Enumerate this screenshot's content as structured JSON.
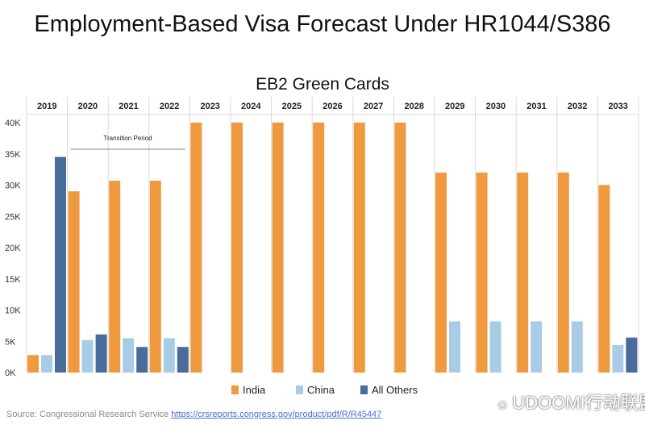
{
  "page_title": "Employment-Based Visa Forecast Under HR1044/S386",
  "source": {
    "label": "Source: Congressional Research Service",
    "url_text": "https://crsreports.congress.gov/product/pdf/R/R45447"
  },
  "watermark": "UDOOMI行动联盟",
  "colors": {
    "india": "#ef9a3e",
    "china": "#a9cce6",
    "others": "#4a6c9b",
    "grid": "#d9d9d9"
  },
  "chart_data": {
    "type": "bar",
    "title": "EB2 Green Cards",
    "xlabel": "",
    "ylabel": "",
    "categories": [
      "2019",
      "2020",
      "2021",
      "2022",
      "2023",
      "2024",
      "2025",
      "2026",
      "2027",
      "2028",
      "2029",
      "2030",
      "2031",
      "2032",
      "2033"
    ],
    "series": [
      {
        "name": "India",
        "values": [
          2800,
          29000,
          30700,
          30700,
          40000,
          40000,
          40000,
          40000,
          40000,
          40000,
          32000,
          32000,
          32000,
          32000,
          30000
        ]
      },
      {
        "name": "China",
        "values": [
          2800,
          5200,
          5500,
          5500,
          0,
          0,
          0,
          0,
          0,
          0,
          8200,
          8200,
          8200,
          8200,
          4400
        ]
      },
      {
        "name": "All Others",
        "values": [
          34500,
          6100,
          4100,
          4100,
          0,
          0,
          0,
          0,
          0,
          0,
          0,
          0,
          0,
          0,
          5600
        ]
      }
    ],
    "ylim": [
      0,
      40000
    ],
    "yticks": [
      0,
      5000,
      10000,
      15000,
      20000,
      25000,
      30000,
      35000,
      40000
    ],
    "ytick_labels": [
      "0K",
      "5K",
      "10K",
      "15K",
      "20K",
      "25K",
      "30K",
      "35K",
      "40K"
    ],
    "grid": true,
    "legend_position": "bottom-center",
    "annotation": {
      "text": "Transition Period",
      "span": [
        "2020",
        "2022"
      ]
    }
  }
}
